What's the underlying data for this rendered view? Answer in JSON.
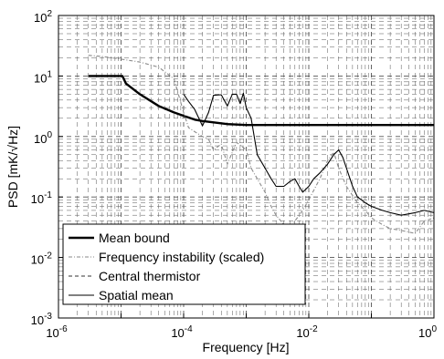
{
  "chart_data": {
    "type": "line",
    "xscale": "log",
    "yscale": "log",
    "xlim": [
      1e-06,
      1
    ],
    "ylim": [
      0.001,
      100
    ],
    "xlabel": "Frequency [Hz]",
    "ylabel": "PSD [mK/√Hz]",
    "grid": "dashed major and minor",
    "legend_position": "lower-left",
    "x_ticks": [
      {
        "base": "10",
        "exp": "-6"
      },
      {
        "base": "10",
        "exp": "-4"
      },
      {
        "base": "10",
        "exp": "-2"
      },
      {
        "base": "10",
        "exp": "0"
      }
    ],
    "y_ticks": [
      {
        "base": "10",
        "exp": "-3"
      },
      {
        "base": "10",
        "exp": "-2"
      },
      {
        "base": "10",
        "exp": "-1"
      },
      {
        "base": "10",
        "exp": "0"
      },
      {
        "base": "10",
        "exp": "1"
      },
      {
        "base": "10",
        "exp": "2"
      }
    ],
    "series": [
      {
        "name": "Mean bound",
        "color": "#000000",
        "style": "solid-thick",
        "x": [
          3e-06,
          9e-06,
          1.05e-05,
          1.2e-05,
          2e-05,
          4e-05,
          7e-05,
          0.0001,
          0.00015,
          0.0002,
          0.0005,
          0.001,
          0.005,
          0.01,
          0.1,
          1
        ],
        "y": [
          10,
          10,
          10,
          7.5,
          5.0,
          3.2,
          2.5,
          2.2,
          1.9,
          1.8,
          1.6,
          1.55,
          1.55,
          1.55,
          1.55,
          1.55
        ]
      },
      {
        "name": "Frequency instability (scaled)",
        "color": "#8a8a8a",
        "style": "dashdot",
        "x": [
          3e-06,
          5e-06,
          1e-05,
          2e-05,
          4e-05,
          7e-05,
          0.0001,
          0.00012,
          0.00015,
          0.0002,
          0.00025,
          0.0003,
          0.0004,
          0.0005,
          0.0007,
          0.001,
          0.0012,
          0.0015,
          0.002,
          0.0025,
          0.003,
          0.004,
          0.005,
          0.006,
          0.008,
          0.01,
          0.015,
          0.02,
          0.025,
          0.03,
          0.04,
          0.06,
          0.08,
          0.1,
          0.15,
          0.2,
          0.3,
          0.5,
          0.7,
          1
        ],
        "y": [
          22,
          21,
          19,
          17,
          14,
          9,
          2.5,
          1.4,
          1.2,
          1.0,
          0.9,
          0.6,
          0.75,
          0.35,
          0.8,
          0.6,
          0.3,
          0.2,
          0.12,
          0.07,
          0.05,
          0.035,
          0.03,
          0.04,
          0.06,
          0.09,
          0.2,
          0.4,
          0.55,
          0.3,
          0.15,
          0.08,
          0.06,
          0.045,
          0.035,
          0.03,
          0.028,
          0.025,
          0.04,
          0.045
        ]
      },
      {
        "name": "Central thermistor",
        "color": "#333333",
        "style": "dashed",
        "x": [],
        "y": []
      },
      {
        "name": "Spatial mean",
        "color": "#000000",
        "style": "solid-thin",
        "x": [
          0.0001,
          0.00012,
          0.00015,
          0.0002,
          0.00025,
          0.0003,
          0.0004,
          0.0005,
          0.0006,
          0.0007,
          0.0008,
          0.0009,
          0.001,
          0.0012,
          0.0015,
          0.002,
          0.0025,
          0.003,
          0.004,
          0.005,
          0.006,
          0.007,
          0.008,
          0.01,
          0.012,
          0.015,
          0.02,
          0.025,
          0.03,
          0.035,
          0.04,
          0.05,
          0.06,
          0.08,
          0.1,
          0.15,
          0.2,
          0.3,
          0.5,
          0.7,
          1
        ],
        "y": [
          5.0,
          3.8,
          2.8,
          1.5,
          2.5,
          4.8,
          4.9,
          3.2,
          5.0,
          5.0,
          3.5,
          5.2,
          3.0,
          2.0,
          0.5,
          0.3,
          0.2,
          0.15,
          0.15,
          0.18,
          0.2,
          0.15,
          0.12,
          0.15,
          0.2,
          0.25,
          0.35,
          0.5,
          0.6,
          0.45,
          0.3,
          0.15,
          0.1,
          0.08,
          0.07,
          0.06,
          0.055,
          0.05,
          0.055,
          0.06,
          0.055
        ]
      }
    ]
  }
}
